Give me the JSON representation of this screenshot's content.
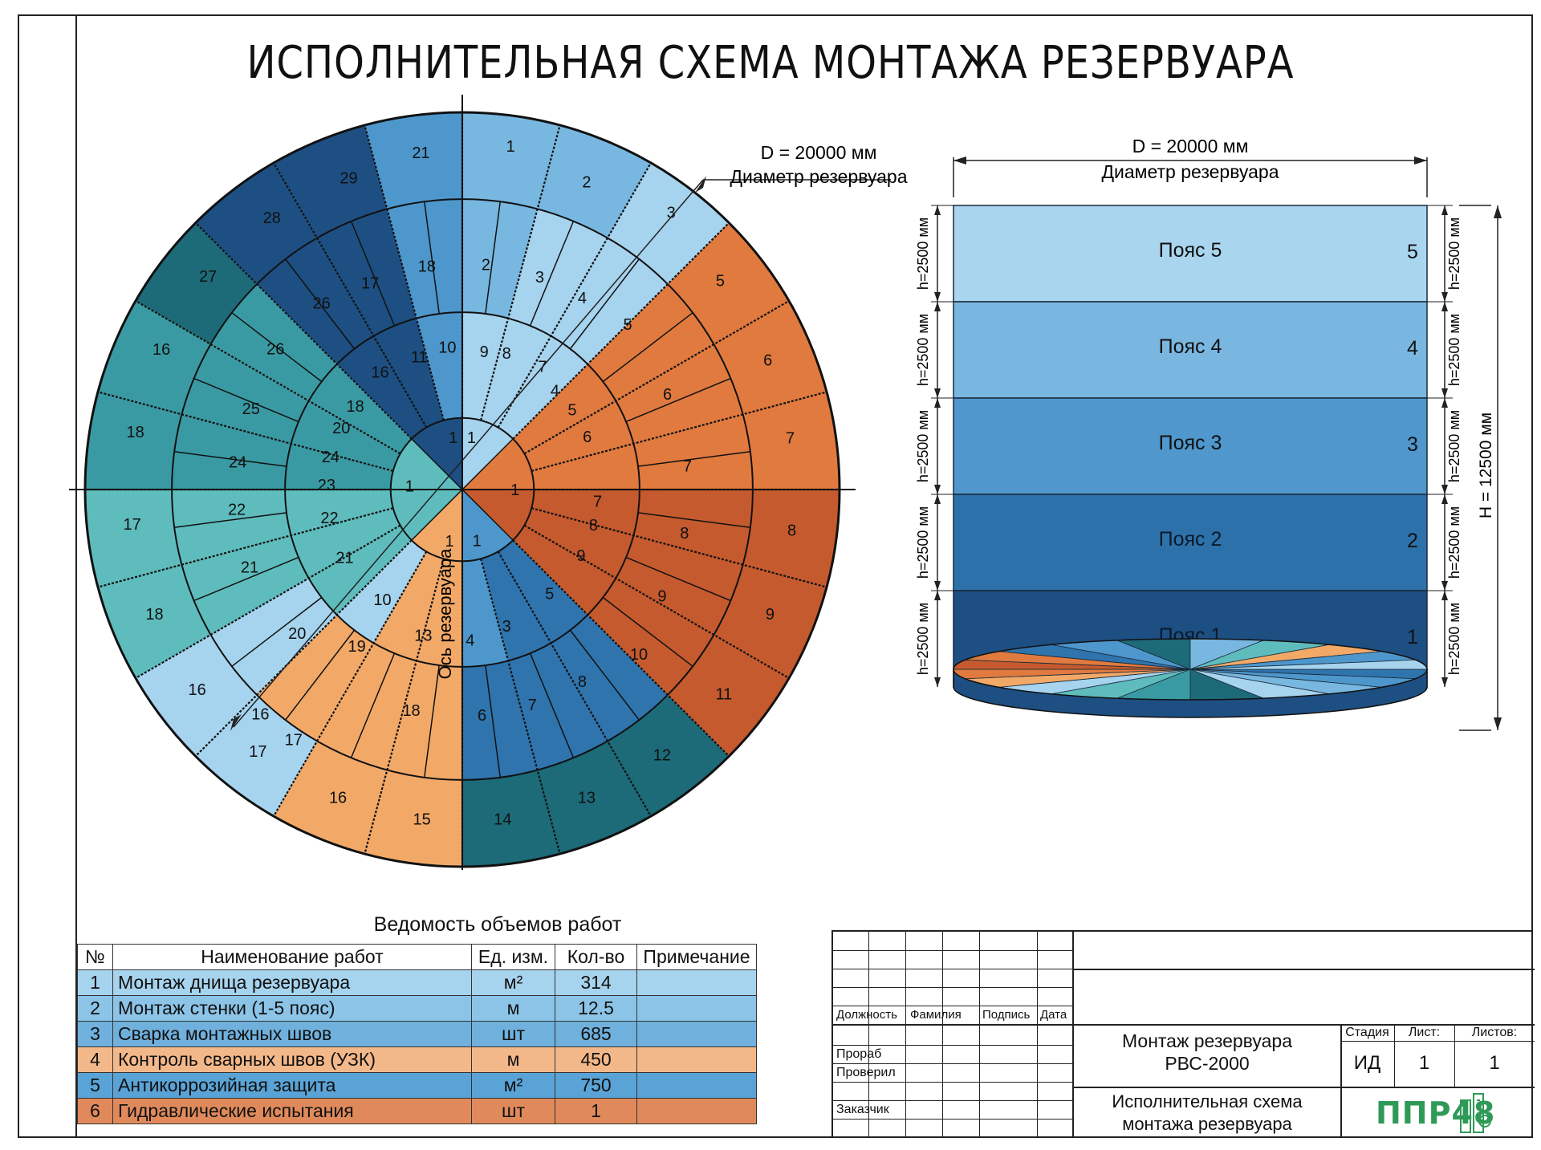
{
  "title": "ИСПОЛНИТЕЛЬНАЯ СХЕМА МОНТАЖА РЕЗЕРВУАРА",
  "colors": {
    "light_blue": "#a6d3ee",
    "mid_light_blue": "#78b7e0",
    "mid_blue": "#4d97cc",
    "blue": "#2f74ad",
    "dark_blue": "#1d4f82",
    "teal_dark": "#1d6a78",
    "teal": "#3a9aa3",
    "teal_light": "#5fbcbd",
    "orange_light": "#f2a968",
    "orange": "#e07a3f",
    "rust": "#c55a2e"
  },
  "plan": {
    "diameter_label": "D = 20000 мм",
    "diameter_caption": "Диаметр резервуара",
    "axis_label": "Ось резервуара",
    "quadrants": {
      "upper_right": {
        "outer": [
          "1",
          "2",
          "3",
          "5",
          "6",
          "7",
          "8",
          "9"
        ],
        "ring3": [
          "2",
          "3",
          "4",
          "5",
          "6",
          "7",
          "8",
          "9"
        ],
        "ring2": [
          "9",
          "8",
          "7",
          "4",
          "5",
          "6",
          "7",
          "8"
        ],
        "center": [
          "1",
          "1"
        ]
      },
      "upper_left": {
        "outer": [
          "21",
          "29",
          "28",
          "27",
          "16",
          "18"
        ],
        "ring3": [
          "18",
          "17",
          "26",
          "26",
          "25",
          "24"
        ],
        "ring2": [
          "10",
          "11",
          "16",
          "18",
          "20",
          "24"
        ],
        "center": [
          "1",
          "1"
        ]
      },
      "lower_left": {
        "outer": [
          "17",
          "18",
          "16",
          "17",
          "16",
          "15"
        ],
        "ring3": [
          "22",
          "21",
          "20",
          "19",
          "18",
          "13"
        ],
        "ring2": [
          "23",
          "22",
          "21",
          "10",
          "13"
        ],
        "center": [
          "1"
        ]
      },
      "lower_right": {
        "outer": [
          "14",
          "13",
          "12",
          "11",
          "10",
          "9",
          "8",
          "9"
        ],
        "ring3": [
          "6",
          "7",
          "8",
          "10",
          "9",
          "8"
        ],
        "ring2": [
          "4",
          "3",
          "5",
          "9",
          "8",
          "7"
        ],
        "center": [
          "1",
          "1"
        ]
      }
    },
    "sector_labels": [
      {
        "t": "1",
        "a": 82,
        "r": 0.92
      },
      {
        "t": "2",
        "a": 68,
        "r": 0.88
      },
      {
        "t": "3",
        "a": 53,
        "r": 0.92
      },
      {
        "t": "5",
        "a": 39,
        "r": 0.88
      },
      {
        "t": "6",
        "a": 23,
        "r": 0.88
      },
      {
        "t": "7",
        "a": 9,
        "r": 0.88
      },
      {
        "t": "8",
        "a": -7,
        "r": 0.88
      },
      {
        "t": "9",
        "a": -22,
        "r": 0.88
      },
      {
        "t": "11",
        "a": -38,
        "r": 0.88
      },
      {
        "t": "12",
        "a": -53,
        "r": 0.88
      },
      {
        "t": "13",
        "a": -68,
        "r": 0.88
      },
      {
        "t": "14",
        "a": -83,
        "r": 0.88
      },
      {
        "t": "15",
        "a": -97,
        "r": 0.88
      },
      {
        "t": "16",
        "a": -112,
        "r": 0.88
      },
      {
        "t": "17",
        "a": -128,
        "r": 0.88
      },
      {
        "t": "16",
        "a": -143,
        "r": 0.88
      },
      {
        "t": "18",
        "a": -158,
        "r": 0.88
      },
      {
        "t": "17",
        "a": -174,
        "r": 0.88
      },
      {
        "t": "18",
        "a": 170,
        "r": 0.88
      },
      {
        "t": "16",
        "a": 155,
        "r": 0.88
      },
      {
        "t": "27",
        "a": 140,
        "r": 0.88
      },
      {
        "t": "28",
        "a": 125,
        "r": 0.88
      },
      {
        "t": "29",
        "a": 110,
        "r": 0.88
      },
      {
        "t": "21",
        "a": 97,
        "r": 0.9
      },
      {
        "t": "2",
        "a": 84,
        "r": 0.6
      },
      {
        "t": "3",
        "a": 70,
        "r": 0.6
      },
      {
        "t": "4",
        "a": 58,
        "r": 0.6
      },
      {
        "t": "5",
        "a": 45,
        "r": 0.62
      },
      {
        "t": "6",
        "a": 25,
        "r": 0.6
      },
      {
        "t": "7",
        "a": 6,
        "r": 0.6
      },
      {
        "t": "8",
        "a": -11,
        "r": 0.6
      },
      {
        "t": "9",
        "a": -28,
        "r": 0.6
      },
      {
        "t": "10",
        "a": -43,
        "r": 0.64
      },
      {
        "t": "8",
        "a": -58,
        "r": 0.6
      },
      {
        "t": "7",
        "a": -72,
        "r": 0.6
      },
      {
        "t": "6",
        "a": -85,
        "r": 0.6
      },
      {
        "t": "18",
        "a": -103,
        "r": 0.6
      },
      {
        "t": "20",
        "a": -139,
        "r": 0.58
      },
      {
        "t": "21",
        "a": -160,
        "r": 0.6
      },
      {
        "t": "22",
        "a": -175,
        "r": 0.6
      },
      {
        "t": "24",
        "a": 173,
        "r": 0.6
      },
      {
        "t": "25",
        "a": 159,
        "r": 0.6
      },
      {
        "t": "26",
        "a": 143,
        "r": 0.62
      },
      {
        "t": "26",
        "a": 127,
        "r": 0.62
      },
      {
        "t": "17",
        "a": 114,
        "r": 0.6
      },
      {
        "t": "18",
        "a": 99,
        "r": 0.6
      },
      {
        "t": "19",
        "a": -124,
        "r": 0.5
      },
      {
        "t": "17",
        "a": -124,
        "r": 0.8
      },
      {
        "t": "16",
        "a": -132,
        "r": 0.8
      },
      {
        "t": "9",
        "a": 81,
        "r": 0.37
      },
      {
        "t": "8",
        "a": 72,
        "r": 0.38
      },
      {
        "t": "7",
        "a": 57,
        "r": 0.39
      },
      {
        "t": "4",
        "a": 47,
        "r": 0.36
      },
      {
        "t": "5",
        "a": 36,
        "r": 0.36
      },
      {
        "t": "6",
        "a": 23,
        "r": 0.36
      },
      {
        "t": "7",
        "a": -5,
        "r": 0.36
      },
      {
        "t": "8",
        "a": -15,
        "r": 0.36
      },
      {
        "t": "9",
        "a": -29,
        "r": 0.36
      },
      {
        "t": "5",
        "a": -50,
        "r": 0.36
      },
      {
        "t": "3",
        "a": -72,
        "r": 0.38
      },
      {
        "t": "4",
        "a": -87,
        "r": 0.4
      },
      {
        "t": "13",
        "a": -105,
        "r": 0.4
      },
      {
        "t": "10",
        "a": -126,
        "r": 0.36
      },
      {
        "t": "21",
        "a": -150,
        "r": 0.36
      },
      {
        "t": "22",
        "a": -168,
        "r": 0.36
      },
      {
        "t": "23",
        "a": 178,
        "r": 0.36
      },
      {
        "t": "24",
        "a": 166,
        "r": 0.36
      },
      {
        "t": "20",
        "a": 153,
        "r": 0.36
      },
      {
        "t": "18",
        "a": 142,
        "r": 0.36
      },
      {
        "t": "16",
        "a": 125,
        "r": 0.38
      },
      {
        "t": "11",
        "a": 108,
        "r": 0.37
      },
      {
        "t": "10",
        "a": 96,
        "r": 0.38
      },
      {
        "t": "1",
        "a": 80,
        "r": 0.14
      },
      {
        "t": "1",
        "a": 0,
        "r": 0.14
      },
      {
        "t": "1",
        "a": -74,
        "r": 0.14
      },
      {
        "t": "1",
        "a": -104,
        "r": 0.14
      },
      {
        "t": "1",
        "a": 176,
        "r": 0.14
      },
      {
        "t": "1",
        "a": 100,
        "r": 0.14
      }
    ]
  },
  "tank": {
    "diameter_label": "D = 20000 мм",
    "diameter_caption": "Диаметр резервуара",
    "height_label": "H = 12500 мм",
    "courses": [
      {
        "name": "Пояс 5",
        "num": "5",
        "h": "h=2500 мм",
        "color": "#a9d5ef"
      },
      {
        "name": "Пояс 4",
        "num": "4",
        "h": "h=2500 мм",
        "color": "#79b7e1"
      },
      {
        "name": "Пояс 3",
        "num": "3",
        "h": "h=2500 мм",
        "color": "#4f97cc"
      },
      {
        "name": "Пояс 2",
        "num": "2",
        "h": "h=2500 мм",
        "color": "#2d71aa"
      },
      {
        "name": "Пояс 1",
        "num": "1",
        "h": "h=2500 мм",
        "color": "#1d4f82"
      }
    ]
  },
  "work_table": {
    "caption": "Ведомость объемов работ",
    "headers": [
      "№",
      "Наименование работ",
      "Ед. изм.",
      "Кол-во",
      "Примечание"
    ],
    "rows": [
      {
        "n": "1",
        "name": "Монтаж днища резервуара",
        "unit": "м²",
        "qty": "314",
        "note": "",
        "color": "#a6d3ee"
      },
      {
        "n": "2",
        "name": "Монтаж стенки (1-5 пояс)",
        "unit": "м",
        "qty": "12.5",
        "note": "",
        "color": "#8cc4e8"
      },
      {
        "n": "3",
        "name": "Сварка монтажных швов",
        "unit": "шт",
        "qty": "685",
        "note": "",
        "color": "#6fb0dd"
      },
      {
        "n": "4",
        "name": "Контроль сварных швов (УЗК)",
        "unit": "м",
        "qty": "450",
        "note": "",
        "color": "#f3b88a"
      },
      {
        "n": "5",
        "name": "Антикоррозийная защита",
        "unit": "м²",
        "qty": "750",
        "note": "",
        "color": "#5aa3d6"
      },
      {
        "n": "6",
        "name": "Гидравлические испытания",
        "unit": "шт",
        "qty": "1",
        "note": "",
        "color": "#e08a5c"
      }
    ]
  },
  "stamp": {
    "col_headers": [
      "Должность",
      "Фамилия",
      "Подпись",
      "Дата"
    ],
    "roles": [
      "Прораб",
      "Проверил",
      "Заказчик"
    ],
    "object_title": "Монтаж резервуара РВС-2000",
    "object_title_line1": "Монтаж резервуара",
    "object_title_line2": "РВС-2000",
    "doc_title_line1": "Исполнительная схема",
    "doc_title_line2": "монтажа резервуара",
    "stage_label": "Стадия",
    "sheet_label": "Лист:",
    "sheets_label": "Листов:",
    "stage": "ИД",
    "sheet": "1",
    "sheets": "1",
    "logo_text": "ППР48"
  }
}
